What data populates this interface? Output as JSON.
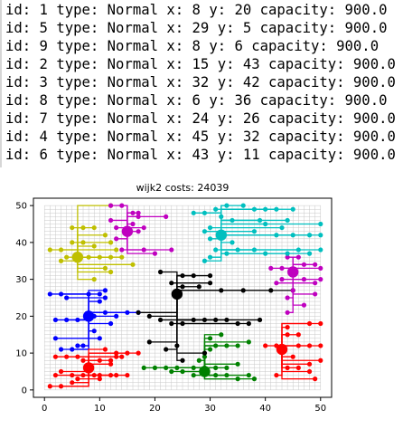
{
  "console": {
    "lines": [
      "id: 1 type: Normal x: 8 y: 20 capacity: 900.0",
      "id: 5 type: Normal x: 29 y: 5 capacity: 900.0",
      "id: 9 type: Normal x: 8 y: 6 capacity: 900.0",
      "id: 2 type: Normal x: 15 y: 43 capacity: 900.0",
      "id: 3 type: Normal x: 32 y: 42 capacity: 900.0",
      "id: 8 type: Normal x: 6 y: 36 capacity: 900.0",
      "id: 7 type: Normal x: 24 y: 26 capacity: 900.0",
      "id: 4 type: Normal x: 45 y: 32 capacity: 900.0",
      "id: 6 type: Normal x: 43 y: 11 capacity: 900.0"
    ]
  },
  "chart_data": {
    "type": "scatter",
    "title": "wijk2 costs: 24039",
    "xlim": [
      -2,
      52
    ],
    "ylim": [
      -2,
      52
    ],
    "xticks": [
      0,
      10,
      20,
      30,
      40,
      50
    ],
    "yticks": [
      0,
      10,
      20,
      30,
      40,
      50
    ],
    "grid": true,
    "clusters": [
      {
        "color": "#0000ff",
        "hub": [
          8,
          20
        ],
        "houses": [
          [
            1,
            26
          ],
          [
            3,
            26
          ],
          [
            4,
            25
          ],
          [
            8,
            26
          ],
          [
            10,
            26
          ],
          [
            11,
            25
          ],
          [
            10,
            24
          ],
          [
            11,
            27
          ],
          [
            2,
            19
          ],
          [
            4,
            19
          ],
          [
            6,
            19
          ],
          [
            9,
            20
          ],
          [
            11,
            21
          ],
          [
            13,
            20
          ],
          [
            15,
            21
          ],
          [
            17,
            21
          ],
          [
            3,
            11
          ],
          [
            5,
            11
          ],
          [
            6,
            12
          ],
          [
            7,
            12
          ],
          [
            9,
            16
          ],
          [
            10,
            14
          ],
          [
            12,
            18
          ],
          [
            2,
            14
          ]
        ]
      },
      {
        "color": "#ff0000",
        "hub": [
          8,
          6
        ],
        "houses": [
          [
            1,
            1
          ],
          [
            3,
            1
          ],
          [
            5,
            2
          ],
          [
            6,
            3
          ],
          [
            2,
            4
          ],
          [
            3,
            5
          ],
          [
            5,
            4
          ],
          [
            7,
            4
          ],
          [
            9,
            4
          ],
          [
            10,
            4
          ],
          [
            12,
            4
          ],
          [
            13,
            4
          ],
          [
            15,
            4
          ],
          [
            10,
            3
          ],
          [
            12,
            7
          ],
          [
            13,
            9
          ],
          [
            15,
            10
          ],
          [
            17,
            10
          ],
          [
            14,
            9
          ],
          [
            2,
            9
          ],
          [
            4,
            9
          ],
          [
            6,
            9
          ],
          [
            7,
            8
          ],
          [
            10,
            8
          ],
          [
            12,
            8
          ],
          [
            13,
            10
          ],
          [
            11,
            11
          ]
        ]
      },
      {
        "color": "#ff0000",
        "hub": [
          43,
          11
        ],
        "houses": [
          [
            40,
            12
          ],
          [
            42,
            12
          ],
          [
            46,
            12
          ],
          [
            48,
            12
          ],
          [
            50,
            12
          ],
          [
            44,
            15
          ],
          [
            46,
            15
          ],
          [
            48,
            18
          ],
          [
            50,
            18
          ],
          [
            44,
            17
          ],
          [
            42,
            4
          ],
          [
            44,
            6
          ],
          [
            46,
            6
          ],
          [
            48,
            5
          ],
          [
            49,
            3
          ],
          [
            50,
            8
          ],
          [
            45,
            9
          ],
          [
            48,
            7
          ]
        ]
      },
      {
        "color": "#008000",
        "hub": [
          29,
          5
        ],
        "houses": [
          [
            18,
            6
          ],
          [
            20,
            6
          ],
          [
            22,
            6
          ],
          [
            24,
            6
          ],
          [
            27,
            6
          ],
          [
            29,
            6
          ],
          [
            31,
            6
          ],
          [
            33,
            6
          ],
          [
            35,
            7
          ],
          [
            23,
            5
          ],
          [
            25,
            5
          ],
          [
            27,
            4
          ],
          [
            31,
            4
          ],
          [
            33,
            4
          ],
          [
            35,
            3
          ],
          [
            37,
            4
          ],
          [
            38,
            3
          ],
          [
            30,
            11
          ],
          [
            31,
            12
          ],
          [
            33,
            12
          ],
          [
            35,
            12
          ],
          [
            37,
            13
          ],
          [
            30,
            14
          ],
          [
            32,
            15
          ],
          [
            28,
            8
          ],
          [
            29,
            9
          ]
        ]
      },
      {
        "color": "#000000",
        "hub": [
          24,
          26
        ],
        "houses": [
          [
            21,
            32
          ],
          [
            25,
            31
          ],
          [
            27,
            31
          ],
          [
            30,
            31
          ],
          [
            23,
            29
          ],
          [
            25,
            28
          ],
          [
            28,
            28
          ],
          [
            30,
            29
          ],
          [
            32,
            27
          ],
          [
            36,
            27
          ],
          [
            41,
            27
          ],
          [
            45,
            27
          ],
          [
            17,
            21
          ],
          [
            19,
            20
          ],
          [
            21,
            19
          ],
          [
            23,
            18
          ],
          [
            25,
            18
          ],
          [
            27,
            19
          ],
          [
            29,
            19
          ],
          [
            31,
            19
          ],
          [
            33,
            19
          ],
          [
            35,
            18
          ],
          [
            37,
            18
          ],
          [
            39,
            19
          ],
          [
            19,
            13
          ],
          [
            22,
            11
          ],
          [
            24,
            12
          ],
          [
            25,
            8
          ],
          [
            29,
            10
          ]
        ]
      },
      {
        "color": "#bfbf00",
        "hub": [
          6,
          36
        ],
        "houses": [
          [
            1,
            38
          ],
          [
            3,
            38
          ],
          [
            5,
            40
          ],
          [
            7,
            40
          ],
          [
            9,
            39
          ],
          [
            11,
            42
          ],
          [
            12,
            40
          ],
          [
            13,
            38
          ],
          [
            3,
            35
          ],
          [
            4,
            36
          ],
          [
            8,
            36
          ],
          [
            10,
            36
          ],
          [
            12,
            36
          ],
          [
            14,
            36
          ],
          [
            9,
            30
          ],
          [
            11,
            33
          ],
          [
            12,
            32
          ],
          [
            16,
            34
          ],
          [
            5,
            44
          ],
          [
            7,
            44
          ],
          [
            9,
            44
          ],
          [
            12,
            50
          ]
        ]
      },
      {
        "color": "#bf00bf",
        "hub": [
          15,
          43
        ],
        "houses": [
          [
            12,
            50
          ],
          [
            14,
            50
          ],
          [
            16,
            48
          ],
          [
            17,
            47
          ],
          [
            22,
            47
          ],
          [
            13,
            44
          ],
          [
            17,
            43
          ],
          [
            18,
            44
          ],
          [
            12,
            46
          ],
          [
            16,
            45
          ],
          [
            13,
            41
          ],
          [
            14,
            38
          ],
          [
            18,
            38
          ],
          [
            20,
            37
          ],
          [
            23,
            38
          ],
          [
            17,
            48
          ]
        ]
      },
      {
        "color": "#bf00bf",
        "hub": [
          45,
          32
        ],
        "houses": [
          [
            41,
            33
          ],
          [
            43,
            33
          ],
          [
            47,
            34
          ],
          [
            49,
            34
          ],
          [
            50,
            33
          ],
          [
            44,
            36
          ],
          [
            46,
            36
          ],
          [
            43,
            30
          ],
          [
            47,
            30
          ],
          [
            49,
            29
          ],
          [
            50,
            30
          ],
          [
            42,
            29
          ],
          [
            45,
            27
          ],
          [
            44,
            25
          ],
          [
            44,
            21
          ],
          [
            47,
            23
          ],
          [
            49,
            26
          ]
        ]
      },
      {
        "color": "#00bfbf",
        "hub": [
          32,
          42
        ],
        "houses": [
          [
            27,
            48
          ],
          [
            29,
            48
          ],
          [
            31,
            49
          ],
          [
            33,
            50
          ],
          [
            36,
            50
          ],
          [
            38,
            49
          ],
          [
            40,
            49
          ],
          [
            42,
            49
          ],
          [
            45,
            49
          ],
          [
            32,
            47
          ],
          [
            34,
            46
          ],
          [
            39,
            46
          ],
          [
            40,
            45
          ],
          [
            43,
            44
          ],
          [
            50,
            45
          ],
          [
            29,
            43
          ],
          [
            30,
            44
          ],
          [
            30,
            41
          ],
          [
            31,
            38
          ],
          [
            30,
            36
          ],
          [
            29,
            35
          ],
          [
            33,
            37
          ],
          [
            35,
            38
          ],
          [
            38,
            43
          ],
          [
            42,
            42
          ],
          [
            45,
            42
          ],
          [
            48,
            42
          ],
          [
            50,
            42
          ],
          [
            34,
            40
          ],
          [
            44,
            46
          ],
          [
            38,
            38
          ],
          [
            40,
            37
          ],
          [
            44,
            37
          ],
          [
            46,
            38
          ],
          [
            48,
            37
          ],
          [
            50,
            38
          ]
        ]
      }
    ]
  }
}
